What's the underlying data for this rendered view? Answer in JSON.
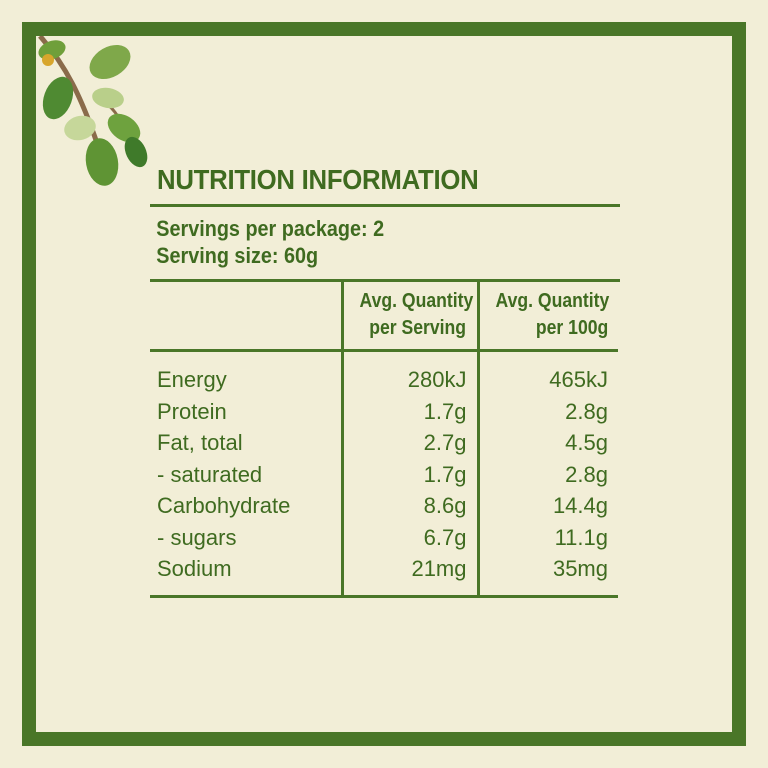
{
  "panel": {
    "title": "NUTRITION INFORMATION",
    "servings_per_package": "Servings per package: 2",
    "serving_size": "Serving size: 60g"
  },
  "table": {
    "header_col2_line1": "Avg. Quantity",
    "header_col2_line2": "per Serving",
    "header_col3_line1": "Avg. Quantity",
    "header_col3_line2": "per 100g",
    "rows": [
      {
        "label": "Energy",
        "per_serving": "280kJ",
        "per_100g": "465kJ"
      },
      {
        "label": "Protein",
        "per_serving": "1.7g",
        "per_100g": "2.8g"
      },
      {
        "label": "Fat, total",
        "per_serving": "2.7g",
        "per_100g": "4.5g"
      },
      {
        "label": "- saturated",
        "per_serving": "1.7g",
        "per_100g": "2.8g"
      },
      {
        "label": "Carbohydrate",
        "per_serving": "8.6g",
        "per_100g": "14.4g"
      },
      {
        "label": "- sugars",
        "per_serving": "6.7g",
        "per_100g": "11.1g"
      },
      {
        "label": "Sodium",
        "per_serving": "21mg",
        "per_100g": "35mg"
      }
    ]
  },
  "colors": {
    "background": "#f2eed7",
    "border_green": "#4a7628",
    "text_green": "#3f6b20"
  },
  "decoration": {
    "icon": "leafy-branch-icon"
  }
}
